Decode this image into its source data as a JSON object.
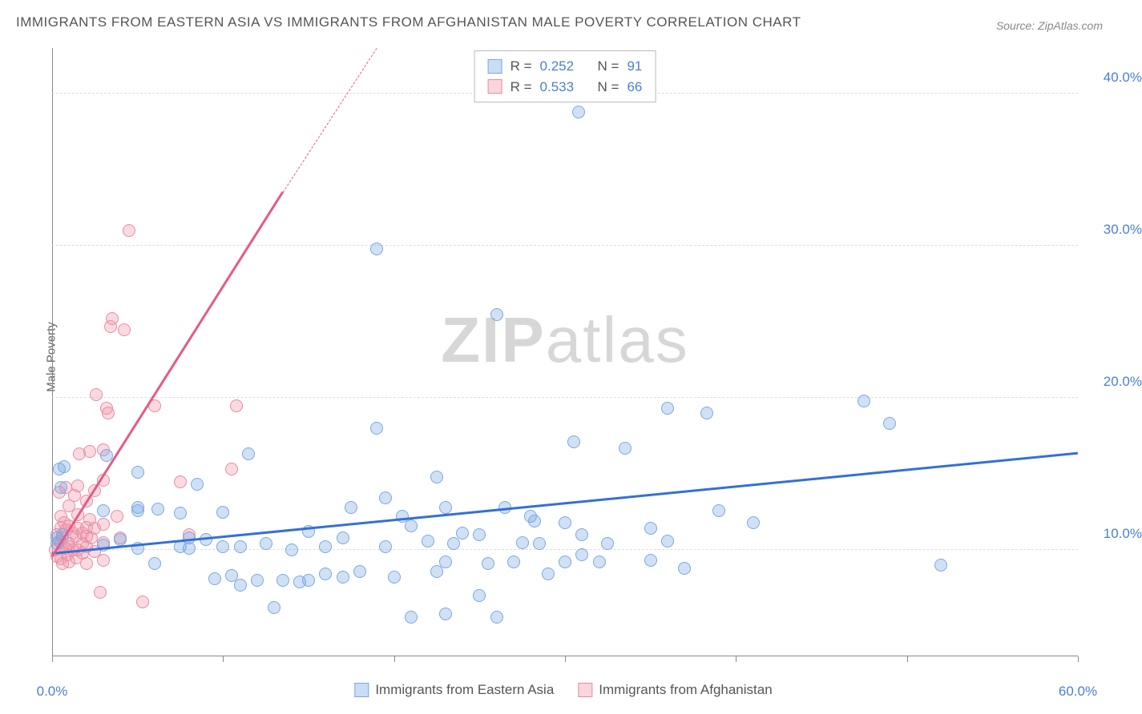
{
  "title": "IMMIGRANTS FROM EASTERN ASIA VS IMMIGRANTS FROM AFGHANISTAN MALE POVERTY CORRELATION CHART",
  "source": "Source: ZipAtlas.com",
  "y_axis_label": "Male Poverty",
  "watermark_bold": "ZIP",
  "watermark_rest": "atlas",
  "chart": {
    "type": "scatter",
    "xlim": [
      0,
      60
    ],
    "ylim": [
      3,
      43
    ],
    "grid_y": [
      10,
      20,
      30,
      40
    ],
    "grid_y_labels": [
      "10.0%",
      "20.0%",
      "30.0%",
      "40.0%"
    ],
    "x_ticks": [
      0,
      10,
      20,
      30,
      40,
      50,
      60
    ],
    "x_tick_labels": {
      "0": "0.0%",
      "60": "60.0%"
    },
    "grid_color": "#dddddd",
    "axis_color": "#888888",
    "background": "#ffffff",
    "label_color": "#4a7fd8",
    "label_fontsize": 17,
    "marker_size": 16,
    "series": {
      "blue": {
        "name": "Immigrants from Eastern Asia",
        "fill": "rgba(120,170,230,0.35)",
        "stroke": "#7aa8e0",
        "trend_color": "#3470d6",
        "trend": {
          "x1": 0,
          "y1": 9.7,
          "x2": 60,
          "y2": 16.3
        },
        "R": "0.252",
        "N": "91",
        "points": [
          [
            0.3,
            10.4
          ],
          [
            0.3,
            10.8
          ],
          [
            0.4,
            15.3
          ],
          [
            0.5,
            14.1
          ],
          [
            0.6,
            11.0
          ],
          [
            0.7,
            15.5
          ],
          [
            3.0,
            10.3
          ],
          [
            3.0,
            12.6
          ],
          [
            3.2,
            16.2
          ],
          [
            4.0,
            10.7
          ],
          [
            5.0,
            15.1
          ],
          [
            5.0,
            10.1
          ],
          [
            5.0,
            12.6
          ],
          [
            5.0,
            12.8
          ],
          [
            6.0,
            9.1
          ],
          [
            6.2,
            12.7
          ],
          [
            7.5,
            10.2
          ],
          [
            7.5,
            12.4
          ],
          [
            8.0,
            10.1
          ],
          [
            8.0,
            10.8
          ],
          [
            8.5,
            14.3
          ],
          [
            9.0,
            10.7
          ],
          [
            9.5,
            8.1
          ],
          [
            10.0,
            10.2
          ],
          [
            10.0,
            12.5
          ],
          [
            10.5,
            8.3
          ],
          [
            11.0,
            10.2
          ],
          [
            11.0,
            7.7
          ],
          [
            11.5,
            16.3
          ],
          [
            12.0,
            8.0
          ],
          [
            12.5,
            10.4
          ],
          [
            13.0,
            6.2
          ],
          [
            13.5,
            8.0
          ],
          [
            14.0,
            10.0
          ],
          [
            14.5,
            7.9
          ],
          [
            15.0,
            8.0
          ],
          [
            15.0,
            11.2
          ],
          [
            16.0,
            8.4
          ],
          [
            16.0,
            10.2
          ],
          [
            17.0,
            8.2
          ],
          [
            17.0,
            10.8
          ],
          [
            17.5,
            12.8
          ],
          [
            18.0,
            8.6
          ],
          [
            19.0,
            29.8
          ],
          [
            19.0,
            18.0
          ],
          [
            19.5,
            10.2
          ],
          [
            19.5,
            13.4
          ],
          [
            20.0,
            8.2
          ],
          [
            20.5,
            12.2
          ],
          [
            21.0,
            5.6
          ],
          [
            21.0,
            11.6
          ],
          [
            22.0,
            10.6
          ],
          [
            22.5,
            14.8
          ],
          [
            22.5,
            8.6
          ],
          [
            23.0,
            5.8
          ],
          [
            23.0,
            9.2
          ],
          [
            23.0,
            12.8
          ],
          [
            23.5,
            10.4
          ],
          [
            24.0,
            11.1
          ],
          [
            25.0,
            11.0
          ],
          [
            25.0,
            7.0
          ],
          [
            25.5,
            9.1
          ],
          [
            26.0,
            5.6
          ],
          [
            26.0,
            25.5
          ],
          [
            26.5,
            12.8
          ],
          [
            27.0,
            9.2
          ],
          [
            27.5,
            10.5
          ],
          [
            28.0,
            12.2
          ],
          [
            28.2,
            11.9
          ],
          [
            28.5,
            10.4
          ],
          [
            29.0,
            8.4
          ],
          [
            30.0,
            9.2
          ],
          [
            30.0,
            11.8
          ],
          [
            30.5,
            17.1
          ],
          [
            30.8,
            38.8
          ],
          [
            31.0,
            9.7
          ],
          [
            31.0,
            11.0
          ],
          [
            32.0,
            9.2
          ],
          [
            32.5,
            10.4
          ],
          [
            33.5,
            16.7
          ],
          [
            35.0,
            9.3
          ],
          [
            35.0,
            11.4
          ],
          [
            36.0,
            10.6
          ],
          [
            36.0,
            19.3
          ],
          [
            37.0,
            8.8
          ],
          [
            38.3,
            19.0
          ],
          [
            39.0,
            12.6
          ],
          [
            41.0,
            11.8
          ],
          [
            47.5,
            19.8
          ],
          [
            49.0,
            18.3
          ],
          [
            52.0,
            9.0
          ]
        ]
      },
      "pink": {
        "name": "Immigrants from Afghanistan",
        "fill": "rgba(240,150,170,0.35)",
        "stroke": "#e98ba2",
        "trend_color": "#e65a86",
        "trend": {
          "x1": 0,
          "y1": 9.5,
          "x2": 13.5,
          "y2": 33.5
        },
        "trend_dash": {
          "x1": 13.5,
          "y1": 33.5,
          "x2": 19,
          "y2": 43
        },
        "R": "0.533",
        "N": "66",
        "points": [
          [
            0.2,
            10.0
          ],
          [
            0.3,
            9.6
          ],
          [
            0.3,
            11.0
          ],
          [
            0.4,
            10.6
          ],
          [
            0.4,
            13.8
          ],
          [
            0.5,
            9.4
          ],
          [
            0.5,
            10.5
          ],
          [
            0.5,
            11.5
          ],
          [
            0.5,
            12.2
          ],
          [
            0.6,
            9.1
          ],
          [
            0.6,
            10.8
          ],
          [
            0.7,
            11.8
          ],
          [
            0.8,
            10.1
          ],
          [
            0.8,
            11.3
          ],
          [
            0.8,
            14.1
          ],
          [
            0.9,
            9.7
          ],
          [
            1.0,
            9.2
          ],
          [
            1.0,
            10.2
          ],
          [
            1.0,
            10.4
          ],
          [
            1.0,
            11.6
          ],
          [
            1.0,
            12.9
          ],
          [
            1.2,
            10.0
          ],
          [
            1.2,
            11.1
          ],
          [
            1.3,
            13.6
          ],
          [
            1.4,
            9.5
          ],
          [
            1.4,
            10.9
          ],
          [
            1.5,
            10.0
          ],
          [
            1.5,
            11.4
          ],
          [
            1.5,
            12.3
          ],
          [
            1.5,
            14.2
          ],
          [
            1.6,
            16.3
          ],
          [
            1.8,
            9.8
          ],
          [
            1.8,
            10.4
          ],
          [
            1.8,
            11.1
          ],
          [
            2.0,
            9.1
          ],
          [
            2.0,
            10.2
          ],
          [
            2.0,
            10.9
          ],
          [
            2.0,
            11.5
          ],
          [
            2.0,
            13.2
          ],
          [
            2.2,
            12.0
          ],
          [
            2.2,
            16.5
          ],
          [
            2.3,
            10.8
          ],
          [
            2.5,
            9.9
          ],
          [
            2.5,
            11.4
          ],
          [
            2.5,
            13.9
          ],
          [
            2.6,
            20.2
          ],
          [
            2.8,
            7.2
          ],
          [
            3.0,
            9.3
          ],
          [
            3.0,
            10.5
          ],
          [
            3.0,
            11.7
          ],
          [
            3.0,
            14.6
          ],
          [
            3.0,
            16.6
          ],
          [
            3.2,
            19.3
          ],
          [
            3.3,
            19.0
          ],
          [
            3.4,
            24.7
          ],
          [
            3.5,
            25.2
          ],
          [
            3.8,
            12.2
          ],
          [
            4.0,
            10.8
          ],
          [
            4.2,
            24.5
          ],
          [
            4.5,
            31.0
          ],
          [
            5.3,
            6.6
          ],
          [
            6.0,
            19.5
          ],
          [
            7.5,
            14.5
          ],
          [
            8.0,
            11.0
          ],
          [
            10.5,
            15.3
          ],
          [
            10.8,
            19.5
          ]
        ]
      }
    }
  },
  "stats_labels": {
    "R": "R =",
    "N": "N ="
  },
  "legend_bottom": {
    "blue": "Immigrants from Eastern Asia",
    "pink": "Immigrants from Afghanistan"
  }
}
